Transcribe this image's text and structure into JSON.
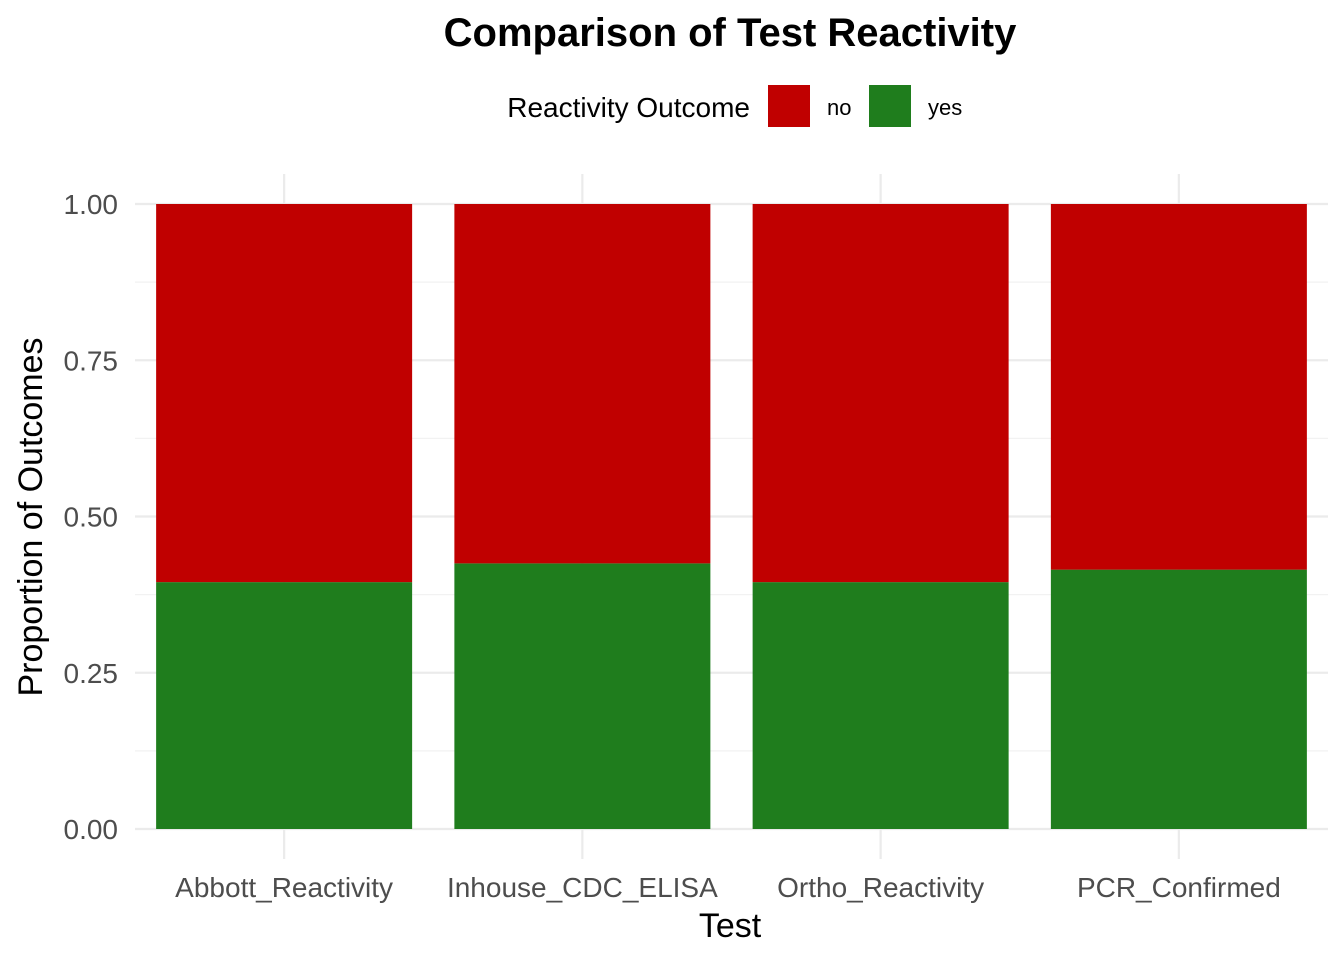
{
  "chart_data": {
    "type": "bar",
    "stacked": true,
    "title": "Comparison of Test Reactivity",
    "xlabel": "Test",
    "ylabel": "Proportion of Outcomes",
    "ylim": [
      0,
      1
    ],
    "yticks": [
      "0.00",
      "0.25",
      "0.50",
      "0.75",
      "1.00"
    ],
    "grid": true,
    "legend": {
      "title": "Reactivity Outcome",
      "position": "top",
      "entries": [
        {
          "label": "no",
          "color": "#c00000"
        },
        {
          "label": "yes",
          "color": "#1f7d1d"
        }
      ]
    },
    "categories": [
      "Abbott_Reactivity",
      "Inhouse_CDC_ELISA",
      "Ortho_Reactivity",
      "PCR_Confirmed"
    ],
    "series": [
      {
        "name": "no",
        "color": "#c00000",
        "values": [
          0.605,
          0.575,
          0.605,
          0.585
        ]
      },
      {
        "name": "yes",
        "color": "#1f7d1d",
        "values": [
          0.395,
          0.425,
          0.395,
          0.415
        ]
      }
    ]
  }
}
